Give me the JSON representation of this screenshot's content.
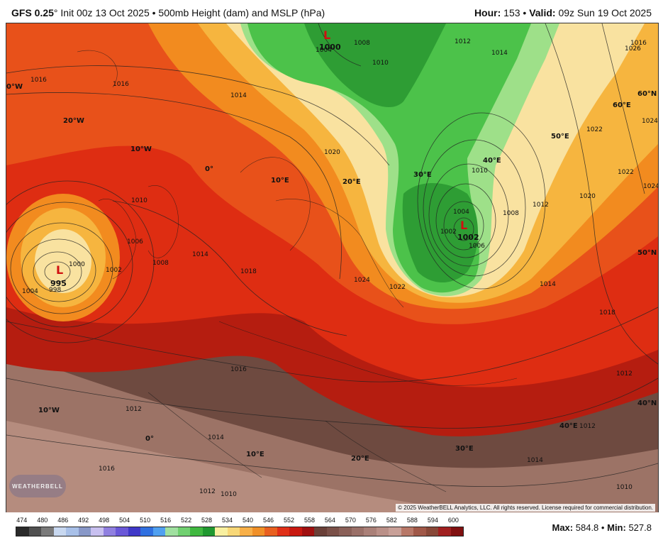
{
  "header": {
    "model": "GFS 0.25",
    "degree_symbol": "°",
    "init": "Init 00z 13 Oct 2025",
    "separator": "•",
    "product": "500mb Height (dam) and MSLP (hPa)",
    "hour_label": "Hour:",
    "hour_value": "153",
    "valid_label": "Valid:",
    "valid_value": "09z Sun 19 Oct 2025"
  },
  "map": {
    "lows": [
      {
        "symbol": "L",
        "value": "995"
      },
      {
        "symbol": "L",
        "value": "1002"
      },
      {
        "symbol": "L",
        "value": "1000"
      }
    ],
    "lon_labels": [
      "20°W",
      "10°W",
      "0°",
      "10°E",
      "20°E",
      "30°E",
      "40°E",
      "50°E",
      "60°E",
      "0°W",
      "10°W",
      "0°",
      "10°E",
      "20°E",
      "30°E",
      "40°E"
    ],
    "lat_labels": [
      "60°N",
      "50°N",
      "40°N"
    ],
    "isobars": [
      "1016",
      "1016",
      "1014",
      "1010",
      "1006",
      "1008",
      "1002",
      "1000",
      "998",
      "1004",
      "1014",
      "1018",
      "1020",
      "1022",
      "1024",
      "1026",
      "1024",
      "1022",
      "1020",
      "1010",
      "1008",
      "1012",
      "1010",
      "1014",
      "1022",
      "1024",
      "1018",
      "1012",
      "1016",
      "1012",
      "1014",
      "1012",
      "1010",
      "1016",
      "1014",
      "1012",
      "1010",
      "1002",
      "1004",
      "1006",
      "1004",
      "1008",
      "1012",
      "1014",
      "1016"
    ],
    "copyright": "© 2025 WeatherBELL Analytics, LLC. All rights reserved. License required for commercial distribution.",
    "logo_text": "WEATHERBELL",
    "colors": {
      "red_dark": "#b51d10",
      "red": "#de2d12",
      "orange_red": "#e8511a",
      "orange": "#f28b1f",
      "light_orange": "#f6b53f",
      "yellow": "#f9e2a0",
      "green_light": "#9ee089",
      "green": "#4cc24a",
      "green_dark": "#2e9d34",
      "brown": "#6e4a40",
      "brown_light": "#9c7366",
      "brown_dark": "#4e342c"
    }
  },
  "legend": {
    "labels": [
      "474",
      "480",
      "486",
      "492",
      "498",
      "504",
      "510",
      "516",
      "522",
      "528",
      "534",
      "540",
      "546",
      "552",
      "558",
      "564",
      "570",
      "576",
      "582",
      "588",
      "594",
      "600"
    ],
    "colors": [
      "#2a2a2a",
      "#505050",
      "#7a7a7a",
      "#c8d8f0",
      "#a8c0e8",
      "#8898c8",
      "#c8c0f0",
      "#9080e0",
      "#6a58d8",
      "#3f38c8",
      "#3070e0",
      "#50a0f0",
      "#a0e0a0",
      "#70d070",
      "#40b840",
      "#209830",
      "#f8f0a0",
      "#f8d878",
      "#f8b048",
      "#f09028",
      "#e86020",
      "#e03018",
      "#c81810",
      "#a01010",
      "#6a4038",
      "#7a5048",
      "#8a6058",
      "#9a7068",
      "#aa8078",
      "#ba9088",
      "#c8a098",
      "#b87868",
      "#a05848",
      "#884838",
      "#a02020",
      "#801010"
    ],
    "max_label": "Max:",
    "max_value": "584.8",
    "min_label": "Min:",
    "min_value": "527.8"
  }
}
